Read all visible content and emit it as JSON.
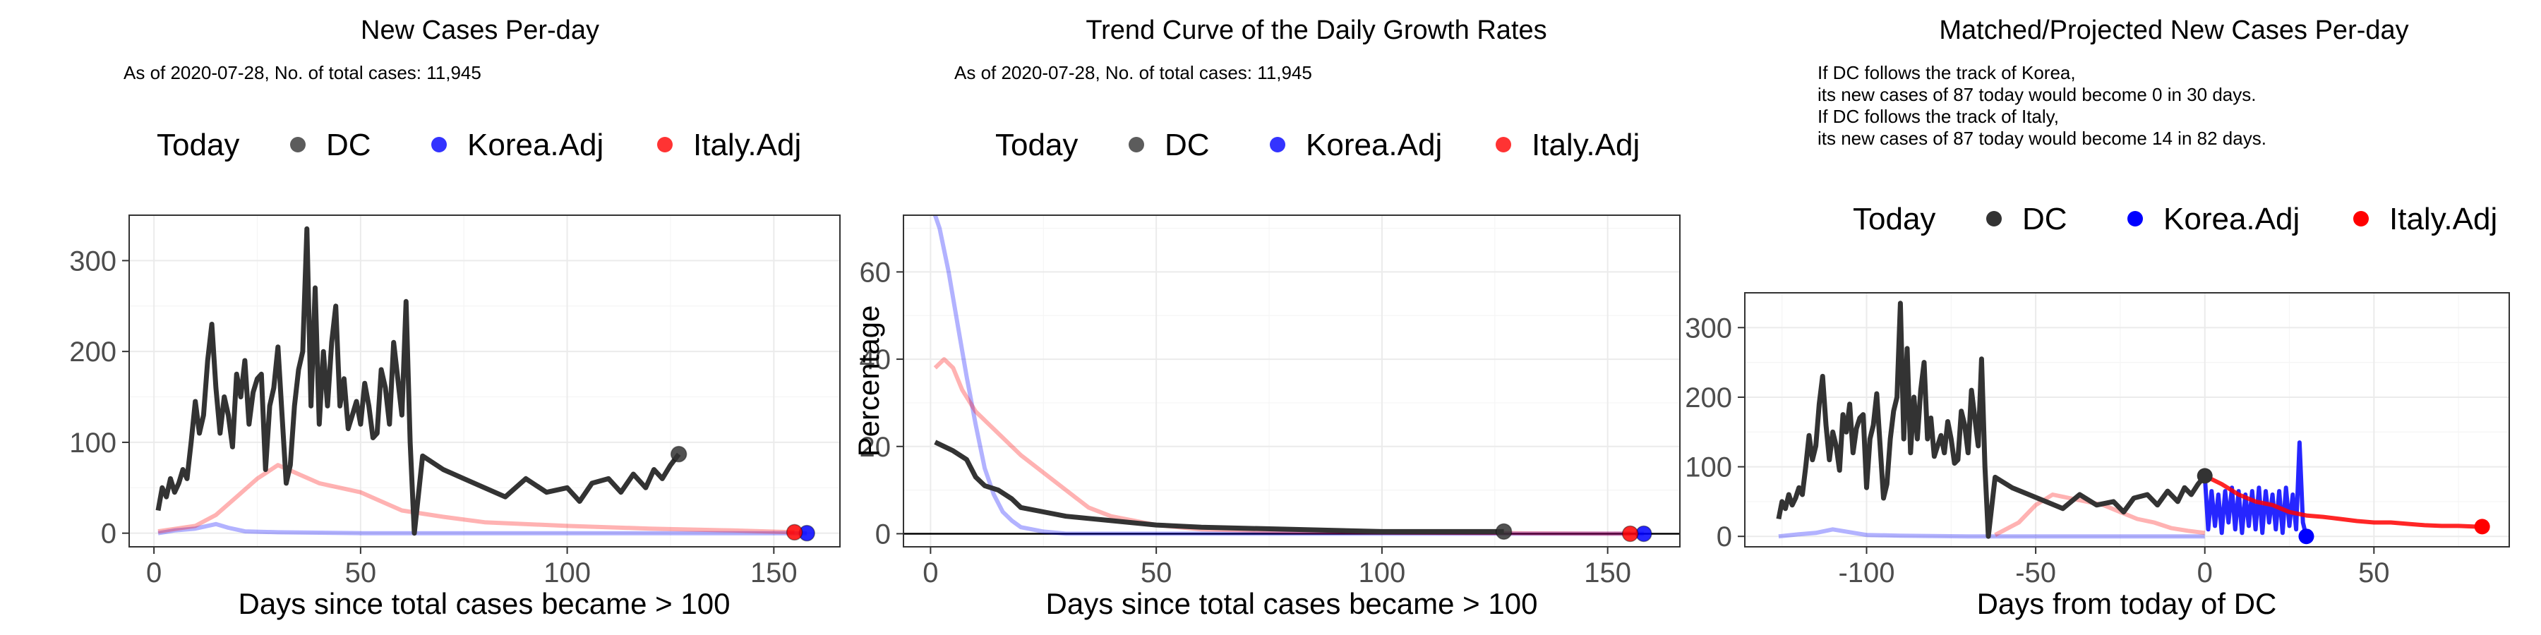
{
  "colors": {
    "dc": "#333333",
    "korea": "#0000ff",
    "italy": "#ff0000"
  },
  "chart_data": [
    {
      "type": "line",
      "title": "New Cases Per-day",
      "subtitle": [
        "As of 2020-07-28, No. of total cases: 11,945"
      ],
      "xlabel": "Days since total cases became > 100",
      "ylabel": "",
      "xlim": [
        -6,
        166
      ],
      "ylim": [
        -15,
        350
      ],
      "xticks": [
        0,
        50,
        100,
        150
      ],
      "yticks": [
        0,
        100,
        200,
        300
      ],
      "legend": {
        "title": "Today",
        "placement": "top",
        "entries": [
          "DC",
          "Korea.Adj",
          "Italy.Adj"
        ]
      },
      "series": [
        {
          "name": "DC",
          "x": [
            1,
            2,
            3,
            4,
            5,
            6,
            7,
            8,
            9,
            10,
            11,
            12,
            13,
            14,
            15,
            16,
            17,
            18,
            19,
            20,
            21,
            22,
            23,
            24,
            25,
            26,
            27,
            28,
            29,
            30,
            31,
            32,
            33,
            34,
            35,
            36,
            37,
            38,
            39,
            40,
            41,
            42,
            43,
            44,
            45,
            46,
            47,
            48,
            49,
            50,
            51,
            52,
            53,
            54,
            55,
            56,
            57,
            58,
            59,
            60,
            61,
            62,
            63,
            65,
            70,
            75,
            80,
            85,
            90,
            95,
            100,
            103,
            106,
            110,
            113,
            116,
            119,
            121,
            123,
            125,
            127
          ],
          "y": [
            25,
            50,
            40,
            60,
            45,
            55,
            70,
            60,
            100,
            145,
            110,
            130,
            190,
            230,
            160,
            110,
            150,
            130,
            95,
            175,
            150,
            190,
            120,
            155,
            170,
            175,
            70,
            140,
            160,
            205,
            130,
            55,
            75,
            140,
            180,
            200,
            335,
            140,
            270,
            120,
            200,
            140,
            210,
            250,
            140,
            170,
            115,
            130,
            145,
            120,
            165,
            140,
            105,
            110,
            180,
            160,
            120,
            210,
            170,
            130,
            255,
            100,
            0,
            85,
            70,
            60,
            50,
            40,
            60,
            45,
            50,
            35,
            55,
            60,
            45,
            65,
            50,
            70,
            60,
            75,
            87
          ]
        },
        {
          "name": "Korea.Adj",
          "x": [
            1,
            5,
            10,
            15,
            18,
            22,
            30,
            50,
            100,
            150,
            158
          ],
          "y": [
            0,
            3,
            5,
            10,
            6,
            2,
            1,
            0,
            0,
            0,
            0
          ]
        },
        {
          "name": "Italy.Adj",
          "x": [
            1,
            10,
            15,
            20,
            25,
            30,
            35,
            40,
            45,
            50,
            55,
            60,
            70,
            80,
            100,
            120,
            140,
            155
          ],
          "y": [
            2,
            8,
            20,
            40,
            60,
            75,
            65,
            55,
            50,
            45,
            35,
            25,
            18,
            12,
            8,
            5,
            3,
            1
          ]
        }
      ],
      "today_points": [
        {
          "series": "DC",
          "x": 127,
          "y": 87
        },
        {
          "series": "Korea.Adj",
          "x": 158,
          "y": 0
        },
        {
          "series": "Italy.Adj",
          "x": 155,
          "y": 1
        }
      ]
    },
    {
      "type": "line",
      "title": "Trend Curve of the Daily Growth Rates",
      "subtitle": [
        "As of 2020-07-28, No. of total cases: 11,945"
      ],
      "xlabel": "Days since total cases became > 100",
      "ylabel": "Percentage",
      "xlim": [
        -6,
        166
      ],
      "ylim": [
        -3,
        73
      ],
      "xticks": [
        0,
        50,
        100,
        150
      ],
      "yticks": [
        0,
        20,
        40,
        60
      ],
      "legend": {
        "title": "Today",
        "placement": "top",
        "entries": [
          "DC",
          "Korea.Adj",
          "Italy.Adj"
        ]
      },
      "series": [
        {
          "name": "DC",
          "x": [
            1,
            3,
            5,
            8,
            10,
            12,
            15,
            18,
            20,
            25,
            30,
            35,
            40,
            50,
            60,
            80,
            100,
            127
          ],
          "y": [
            21,
            20,
            19,
            17,
            13,
            11,
            10,
            8,
            6,
            5,
            4,
            3.5,
            3,
            2,
            1.5,
            1,
            0.5,
            0.5
          ]
        },
        {
          "name": "Korea.Adj",
          "x": [
            1,
            2,
            4,
            6,
            8,
            10,
            12,
            14,
            16,
            18,
            20,
            25,
            30,
            40,
            60,
            100,
            158
          ],
          "y": [
            73,
            70,
            60,
            48,
            36,
            25,
            15,
            9,
            5,
            3,
            1.5,
            0.5,
            0,
            0,
            0,
            0,
            0
          ]
        },
        {
          "name": "Italy.Adj",
          "x": [
            1,
            3,
            5,
            7,
            10,
            15,
            20,
            25,
            30,
            35,
            40,
            50,
            60,
            80,
            100,
            130,
            155
          ],
          "y": [
            38,
            40,
            38,
            33,
            28,
            23,
            18,
            14,
            10,
            6,
            4,
            2,
            1,
            0.5,
            0.3,
            0.1,
            0
          ]
        }
      ],
      "hline": 0,
      "today_points": [
        {
          "series": "DC",
          "x": 127,
          "y": 0.5
        },
        {
          "series": "Korea.Adj",
          "x": 158,
          "y": 0
        },
        {
          "series": "Italy.Adj",
          "x": 155,
          "y": 0
        }
      ]
    },
    {
      "type": "line",
      "title": "Matched/Projected New Cases Per-day",
      "subtitle": [
        "If DC follows the track of Korea,",
        "its new cases of 87 today would become 0 in 30 days.",
        "If DC follows the track of Italy,",
        "its new cases of 87 today would become 14 in 82 days."
      ],
      "xlabel": "Days from today of DC",
      "ylabel": "",
      "xlim": [
        -136,
        90
      ],
      "ylim": [
        -15,
        350
      ],
      "xticks": [
        -100,
        -50,
        0,
        50
      ],
      "yticks": [
        0,
        100,
        200,
        300
      ],
      "legend": {
        "title": "Today",
        "placement": "top",
        "entries": [
          "DC",
          "Korea.Adj",
          "Italy.Adj"
        ]
      },
      "series": [
        {
          "name": "DC",
          "x": [
            -126,
            -125,
            -124,
            -123,
            -122,
            -121,
            -120,
            -119,
            -118,
            -117,
            -116,
            -115,
            -114,
            -113,
            -112,
            -111,
            -110,
            -109,
            -108,
            -107,
            -106,
            -105,
            -104,
            -103,
            -102,
            -101,
            -100,
            -99,
            -98,
            -97,
            -96,
            -95,
            -94,
            -93,
            -92,
            -91,
            -90,
            -89,
            -88,
            -87,
            -86,
            -85,
            -84,
            -83,
            -82,
            -81,
            -80,
            -79,
            -78,
            -77,
            -76,
            -75,
            -74,
            -73,
            -72,
            -71,
            -70,
            -69,
            -68,
            -67,
            -66,
            -65,
            -64,
            -62,
            -57,
            -52,
            -47,
            -42,
            -37,
            -32,
            -27,
            -24,
            -21,
            -17,
            -14,
            -11,
            -8,
            -6,
            -4,
            -2,
            0
          ],
          "y": [
            25,
            50,
            40,
            60,
            45,
            55,
            70,
            60,
            100,
            145,
            110,
            130,
            190,
            230,
            160,
            110,
            150,
            130,
            95,
            175,
            150,
            190,
            120,
            155,
            170,
            175,
            70,
            140,
            160,
            205,
            130,
            55,
            75,
            140,
            180,
            200,
            335,
            140,
            270,
            120,
            200,
            140,
            210,
            250,
            140,
            170,
            115,
            130,
            145,
            120,
            165,
            140,
            105,
            110,
            180,
            160,
            120,
            210,
            170,
            130,
            255,
            100,
            0,
            85,
            70,
            60,
            50,
            40,
            60,
            45,
            50,
            35,
            55,
            60,
            45,
            65,
            50,
            70,
            60,
            75,
            87
          ]
        },
        {
          "name": "Korea.Adj (matched)",
          "x": [
            -126,
            -120,
            -115,
            -110,
            -105,
            -100,
            -90,
            -70,
            -40,
            -10,
            0
          ],
          "y": [
            0,
            3,
            5,
            10,
            6,
            2,
            1,
            0,
            0,
            0,
            0
          ]
        },
        {
          "name": "Italy.Adj (matched)",
          "x": [
            -62,
            -55,
            -50,
            -45,
            -40,
            -35,
            -30,
            -25,
            -20,
            -15,
            -10,
            -5,
            0
          ],
          "y": [
            2,
            20,
            45,
            60,
            55,
            50,
            45,
            35,
            25,
            20,
            12,
            8,
            5
          ]
        },
        {
          "name": "Korea.Adj",
          "x": [
            0,
            1,
            2,
            3,
            4,
            5,
            6,
            7,
            8,
            9,
            10,
            11,
            12,
            13,
            14,
            15,
            16,
            17,
            18,
            19,
            20,
            21,
            22,
            23,
            24,
            25,
            26,
            27,
            28,
            29,
            30
          ],
          "y": [
            87,
            10,
            65,
            15,
            60,
            5,
            65,
            20,
            70,
            10,
            65,
            5,
            60,
            15,
            65,
            10,
            70,
            5,
            65,
            20,
            60,
            10,
            65,
            5,
            70,
            15,
            60,
            10,
            135,
            20,
            0
          ]
        },
        {
          "name": "Italy.Adj",
          "x": [
            0,
            5,
            10,
            15,
            20,
            25,
            30,
            35,
            40,
            45,
            50,
            55,
            60,
            65,
            70,
            75,
            80,
            82
          ],
          "y": [
            87,
            75,
            60,
            50,
            45,
            35,
            30,
            28,
            25,
            22,
            20,
            20,
            18,
            16,
            15,
            15,
            14,
            14
          ]
        }
      ],
      "today_points": [
        {
          "series": "DC",
          "x": 0,
          "y": 87
        },
        {
          "series": "Korea.Adj",
          "x": 30,
          "y": 0
        },
        {
          "series": "Italy.Adj",
          "x": 82,
          "y": 14
        }
      ]
    }
  ]
}
